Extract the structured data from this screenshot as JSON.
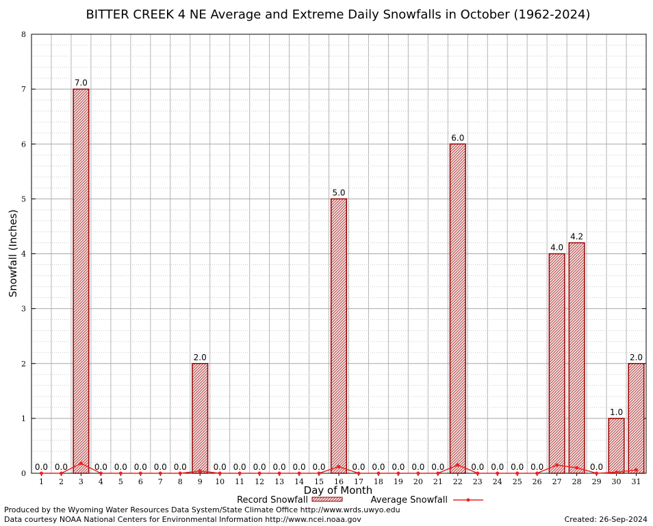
{
  "chart_data": {
    "type": "bar",
    "title": "BITTER CREEK 4 NE Average and Extreme Daily Snowfalls in October (1962-2024)",
    "xlabel": "Day of Month",
    "ylabel": "Snowfall (Inches)",
    "ylim": [
      0,
      8
    ],
    "yticks": [
      "0",
      "1",
      "2",
      "3",
      "4",
      "5",
      "6",
      "7",
      "8"
    ],
    "grid": true,
    "categories": [
      "1",
      "2",
      "3",
      "4",
      "5",
      "6",
      "7",
      "8",
      "9",
      "10",
      "11",
      "12",
      "13",
      "14",
      "15",
      "16",
      "17",
      "18",
      "19",
      "20",
      "21",
      "22",
      "23",
      "24",
      "25",
      "26",
      "27",
      "28",
      "29",
      "30",
      "31"
    ],
    "series": [
      {
        "name": "Record Snowfall",
        "type": "bar",
        "color": "#990000",
        "values": [
          0,
          0,
          7,
          0,
          0,
          0,
          0,
          0,
          2,
          0,
          0,
          0,
          0,
          0,
          0,
          5,
          0,
          0,
          0,
          0,
          0,
          6,
          0,
          0,
          0,
          0,
          4,
          4.2,
          0,
          1,
          2
        ],
        "labels": [
          "0.0",
          "0.0",
          "7.0",
          "0.0",
          "0.0",
          "0.0",
          "0.0",
          "0.0",
          "2.0",
          "0.0",
          "0.0",
          "0.0",
          "0.0",
          "0.0",
          "0.0",
          "5.0",
          "0.0",
          "0.0",
          "0.0",
          "0.0",
          "0.0",
          "6.0",
          "0.0",
          "0.0",
          "0.0",
          "0.0",
          "4.0",
          "4.2",
          "0.0",
          "1.0",
          "2.0"
        ]
      },
      {
        "name": "Average Snowfall",
        "type": "line",
        "color": "#ee2222",
        "values": [
          0,
          0,
          0.18,
          0,
          0,
          0,
          0,
          0,
          0.04,
          0,
          0,
          0,
          0,
          0,
          0,
          0.12,
          0,
          0,
          0,
          0,
          0,
          0.15,
          0,
          0,
          0,
          0,
          0.15,
          0.1,
          0,
          0.02,
          0.06
        ]
      }
    ],
    "legend": "bottom-center"
  },
  "footer": {
    "produced_by": "Produced by the Wyoming Water Resources Data System/State Climate Office http://www.wrds.uwyo.edu",
    "data_courtesy": "Data courtesy NOAA National Centers for Environmental Information http://www.ncei.noaa.gov",
    "created": "Created:  26-Sep-2024"
  }
}
